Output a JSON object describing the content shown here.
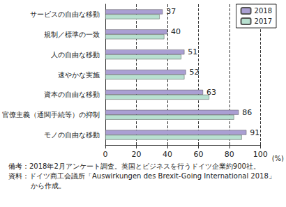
{
  "chart_data": {
    "type": "bar",
    "orientation": "horizontal",
    "categories": [
      "サービスの自由な移動",
      "規制／標準の一致",
      "人の自由な移動",
      "速やかな実施",
      "資本の自由な移動",
      "官僚主義（通関手続等）の抑制",
      "モノの自由な移動"
    ],
    "series": [
      {
        "name": "2018",
        "color": "#aa9fd3",
        "values": [
          37,
          40,
          51,
          52,
          63,
          86,
          91
        ],
        "data_labels": true
      },
      {
        "name": "2017",
        "color": "#b8e0d0",
        "values": [
          35,
          38,
          49,
          51,
          67,
          83,
          88
        ],
        "data_labels": false
      }
    ],
    "xlabel": "(%)",
    "xlim": [
      0,
      100
    ],
    "xticks": [
      0,
      20,
      40,
      60,
      80,
      100
    ],
    "grid": true,
    "legend": "upper right",
    "notes": [
      "備考：2018年2月アンケート調査。英国とビジネスを行うドイツ企業約900社。",
      "資料：ドイツ商工会議所「Auswirkungen des Brexit-Going International 2018」から作成。"
    ]
  }
}
